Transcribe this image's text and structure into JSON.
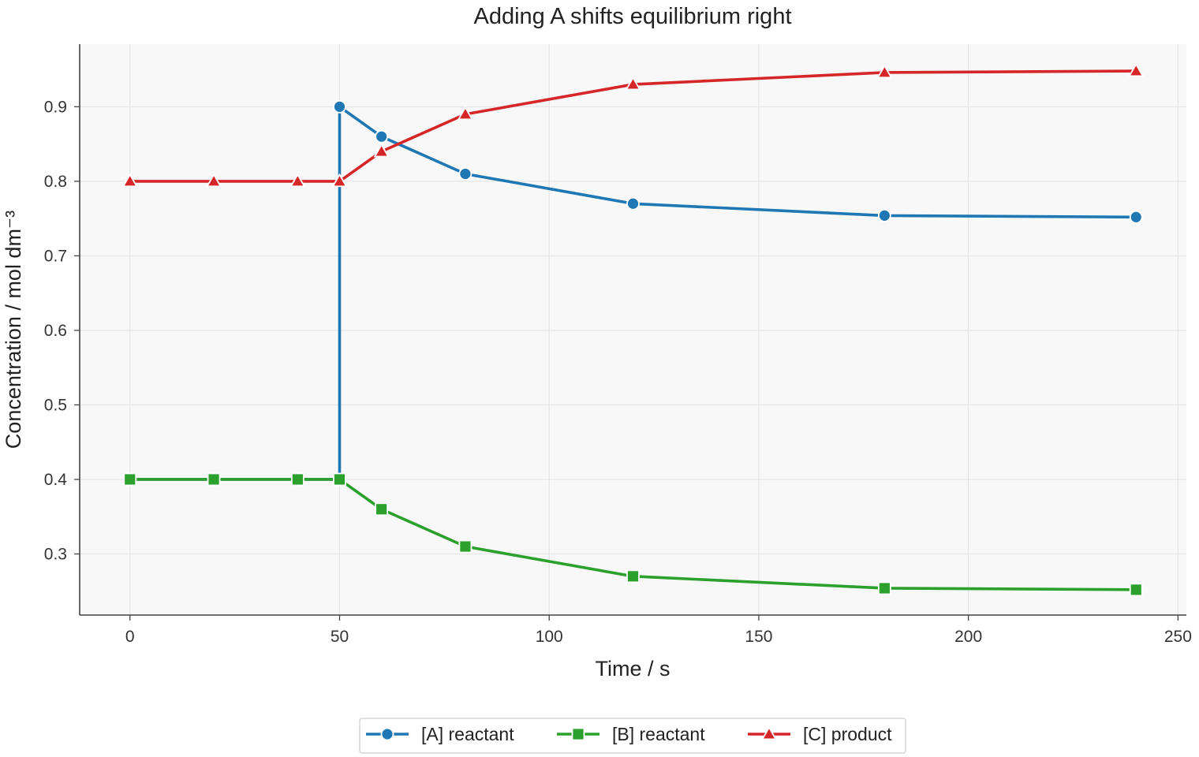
{
  "chart_data": {
    "type": "line",
    "title": "Adding A shifts equilibrium right",
    "xlabel": "Time / s",
    "ylabel": "Concentration / mol dm⁻³",
    "xlim": [
      -12,
      252
    ],
    "ylim": [
      0.218,
      0.984
    ],
    "xticks": [
      0,
      50,
      100,
      150,
      200,
      250
    ],
    "yticks": [
      0.3,
      0.4,
      0.5,
      0.6,
      0.7,
      0.8,
      0.9
    ],
    "ytick_labels": [
      "0.3",
      "0.4",
      "0.5",
      "0.6",
      "0.7",
      "0.8",
      "0.9"
    ],
    "grid": true,
    "legend_position": "bottom-center",
    "series": [
      {
        "name": "[A] reactant",
        "color": "#1f77b4",
        "marker": "circle",
        "points": [
          [
            0,
            0.4
          ],
          [
            20,
            0.4
          ],
          [
            40,
            0.4
          ],
          [
            50,
            0.4
          ],
          [
            50,
            0.9
          ],
          [
            60,
            0.86
          ],
          [
            80,
            0.81
          ],
          [
            120,
            0.77
          ],
          [
            180,
            0.754
          ],
          [
            240,
            0.752
          ]
        ],
        "marker_indices": [
          4,
          5,
          6,
          7,
          8,
          9
        ]
      },
      {
        "name": "[B] reactant",
        "color": "#2ca02c",
        "marker": "square",
        "points": [
          [
            0,
            0.4
          ],
          [
            20,
            0.4
          ],
          [
            40,
            0.4
          ],
          [
            50,
            0.4
          ],
          [
            60,
            0.36
          ],
          [
            80,
            0.31
          ],
          [
            120,
            0.27
          ],
          [
            180,
            0.254
          ],
          [
            240,
            0.252
          ]
        ],
        "marker_indices": [
          0,
          1,
          2,
          3,
          4,
          5,
          6,
          7,
          8
        ]
      },
      {
        "name": "[C] product",
        "color": "#d62728",
        "marker": "triangle",
        "points": [
          [
            0,
            0.8
          ],
          [
            20,
            0.8
          ],
          [
            40,
            0.8
          ],
          [
            50,
            0.8
          ],
          [
            60,
            0.84
          ],
          [
            80,
            0.89
          ],
          [
            120,
            0.93
          ],
          [
            180,
            0.946
          ],
          [
            240,
            0.948
          ]
        ],
        "marker_indices": [
          0,
          1,
          2,
          3,
          4,
          5,
          6,
          7,
          8
        ]
      }
    ]
  }
}
